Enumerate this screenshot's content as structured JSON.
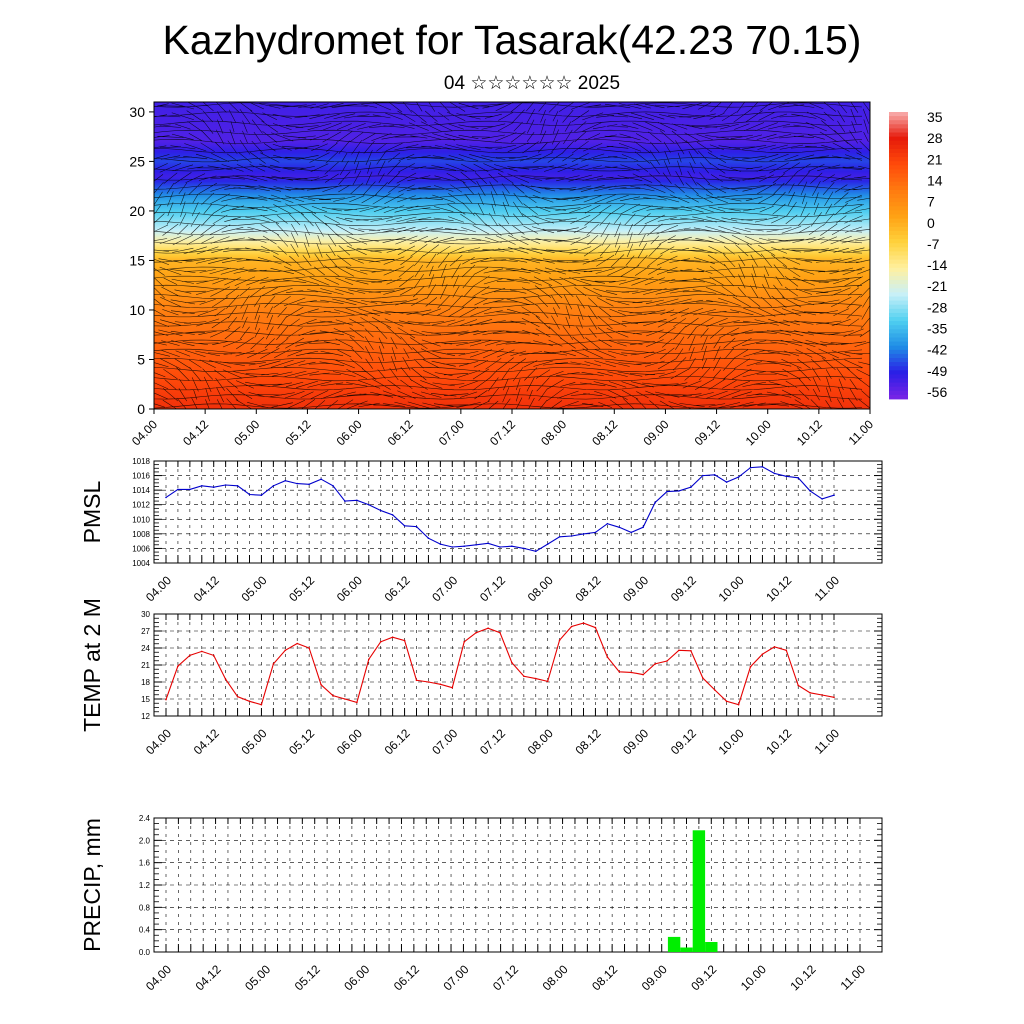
{
  "title": "Kazhydromet for Tasarak(42.23 70.15)",
  "subtitle": "04 ☆☆☆☆☆☆ 2025",
  "chart_data": [
    {
      "type": "heatmap",
      "name": "upper-air-temperature-wind",
      "y_ticks": [
        "0",
        "5",
        "10",
        "15",
        "20",
        "25",
        "30"
      ],
      "ylim": [
        0,
        31
      ],
      "x_tick_labels": [
        "04.00",
        "04.12",
        "05.00",
        "05.12",
        "06.00",
        "06.12",
        "07.00",
        "07.12",
        "08.00",
        "08.12",
        "09.00",
        "09.12",
        "10.00",
        "10.12",
        "11.00"
      ],
      "colorbar_labels": [
        "35",
        "28",
        "21",
        "14",
        "7",
        "0",
        "-7",
        "-14",
        "-21",
        "-28",
        "-35",
        "-42",
        "-49",
        "-56"
      ],
      "colorbar_range": [
        -63,
        42
      ],
      "color_stops": [
        "#7a24e6",
        "#2a1ee6",
        "#1f8de6",
        "#50d0f0",
        "#c8f0f8",
        "#fff0a0",
        "#ffd23c",
        "#ffa214",
        "#ff7a10",
        "#ff4a0a",
        "#e61a0a",
        "#f8b0b0"
      ],
      "profile_levels": [
        0,
        5,
        10,
        15,
        18,
        21,
        23.5,
        25,
        27,
        31
      ],
      "profile_temps": [
        28,
        20,
        12,
        0,
        -25,
        -40,
        -56,
        -50,
        -58,
        -56
      ],
      "wind_vectors": "shown"
    },
    {
      "type": "line",
      "ylabel": "PMSL",
      "ylim": [
        1004,
        1018
      ],
      "yticks": [
        "1004",
        "1006",
        "1008",
        "1010",
        "1012",
        "1014",
        "1016",
        "1018"
      ],
      "x_tick_labels": [
        "04.00",
        "04.12",
        "05.00",
        "05.12",
        "06.00",
        "06.12",
        "07.00",
        "07.12",
        "08.00",
        "08.12",
        "09.00",
        "09.12",
        "10.00",
        "10.12",
        "11.00"
      ],
      "x": [
        0,
        1,
        2,
        3,
        4,
        5,
        6,
        7,
        8,
        9,
        10,
        11,
        12,
        13,
        14,
        15,
        16,
        17,
        18,
        19,
        20,
        21,
        22,
        23,
        24,
        25,
        26,
        27,
        28,
        29,
        30,
        31,
        32,
        33,
        34,
        35,
        36,
        37,
        38,
        39,
        40,
        41,
        42,
        43,
        44,
        45,
        46,
        47,
        48,
        49,
        50,
        51,
        52,
        53,
        54,
        55,
        56
      ],
      "values": [
        1013.0,
        1014.1,
        1014.1,
        1014.6,
        1014.4,
        1014.7,
        1014.6,
        1013.4,
        1013.3,
        1014.6,
        1015.3,
        1014.9,
        1014.8,
        1015.5,
        1014.6,
        1012.5,
        1012.6,
        1012.0,
        1011.2,
        1010.6,
        1009.1,
        1009.0,
        1007.4,
        1006.6,
        1006.2,
        1006.3,
        1006.5,
        1006.7,
        1006.2,
        1006.3,
        1006.0,
        1005.6,
        1006.6,
        1007.6,
        1007.7,
        1008.0,
        1008.2,
        1009.4,
        1008.9,
        1008.2,
        1008.9,
        1012.3,
        1013.8,
        1013.9,
        1014.4,
        1016.0,
        1016.1,
        1015.1,
        1015.8,
        1017.1,
        1017.2,
        1016.3,
        1015.9,
        1015.7,
        1013.9,
        1012.8,
        1013.3
      ],
      "color": "#0000cc",
      "grid": true
    },
    {
      "type": "line",
      "ylabel": "TEMP at 2 M",
      "ylim": [
        12,
        30
      ],
      "yticks": [
        "12",
        "15",
        "18",
        "21",
        "24",
        "27",
        "30"
      ],
      "x_tick_labels": [
        "04.00",
        "04.12",
        "05.00",
        "05.12",
        "06.00",
        "06.12",
        "07.00",
        "07.12",
        "08.00",
        "08.12",
        "09.00",
        "09.12",
        "10.00",
        "10.12",
        "11.00"
      ],
      "x": [
        0,
        1,
        2,
        3,
        4,
        5,
        6,
        7,
        8,
        9,
        10,
        11,
        12,
        13,
        14,
        15,
        16,
        17,
        18,
        19,
        20,
        21,
        22,
        23,
        24,
        25,
        26,
        27,
        28,
        29,
        30,
        31,
        32,
        33,
        34,
        35,
        36,
        37,
        38,
        39,
        40,
        41,
        42,
        43,
        44,
        45,
        46,
        47,
        48,
        49,
        50,
        51,
        52,
        53,
        54,
        55,
        56
      ],
      "values": [
        14.9,
        20.8,
        22.7,
        23.4,
        22.7,
        18.5,
        15.4,
        14.6,
        14.0,
        21.2,
        23.6,
        24.8,
        24.0,
        17.5,
        15.6,
        15.0,
        14.4,
        22.0,
        25.1,
        25.9,
        25.3,
        18.3,
        18.0,
        17.6,
        17.0,
        25.1,
        26.7,
        27.5,
        26.7,
        21.4,
        19.0,
        18.6,
        18.1,
        25.4,
        27.8,
        28.4,
        27.6,
        22.4,
        19.8,
        19.7,
        19.3,
        21.2,
        21.7,
        23.6,
        23.5,
        18.7,
        16.6,
        14.6,
        14.0,
        20.7,
        22.9,
        24.2,
        23.6,
        17.4,
        16.1,
        15.7,
        15.3
      ],
      "color": "#e60000",
      "grid": true
    },
    {
      "type": "bar",
      "ylabel": "PRECIP, mm",
      "ylim": [
        0,
        2.4
      ],
      "yticks": [
        "0.0",
        "0.4",
        "0.8",
        "1.2",
        "1.6",
        "2.0",
        "2.4"
      ],
      "x_tick_labels": [
        "04.00",
        "04.12",
        "05.00",
        "05.12",
        "06.00",
        "06.12",
        "07.00",
        "07.12",
        "08.00",
        "08.12",
        "09.00",
        "09.12",
        "10.00",
        "10.12",
        "11.00"
      ],
      "x": [
        41,
        42,
        43,
        44
      ],
      "values": [
        0.27,
        0.08,
        2.18,
        0.18
      ],
      "color": "#00ee00",
      "grid": true
    }
  ]
}
